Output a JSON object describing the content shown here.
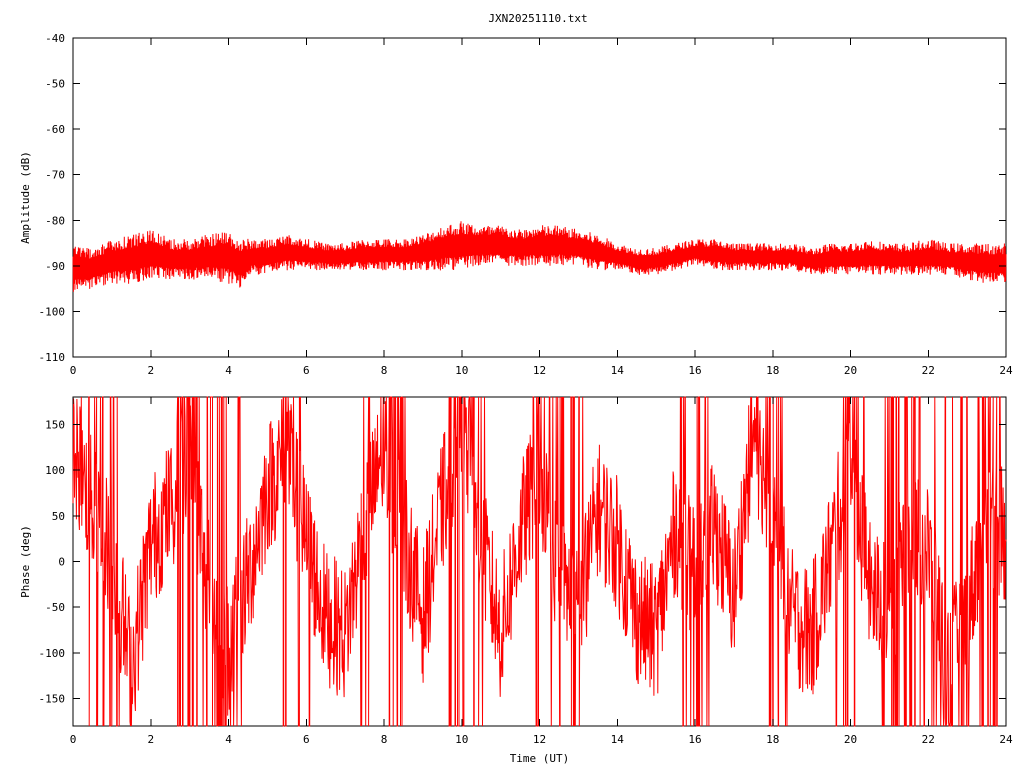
{
  "figure": {
    "title": "JXN20251110.txt"
  },
  "chart_data": [
    {
      "type": "line",
      "title": "JXN20251110.txt",
      "xlabel": "",
      "ylabel": "Amplitude (dB)",
      "xlim": [
        0,
        24
      ],
      "ylim": [
        -110,
        -40
      ],
      "xticks": [
        "0",
        "2",
        "4",
        "6",
        "8",
        "10",
        "12",
        "14",
        "16",
        "18",
        "20",
        "22",
        "24"
      ],
      "yticks": [
        "-40",
        "-50",
        "-60",
        "-70",
        "-80",
        "-90",
        "-100",
        "-110"
      ],
      "grid": false,
      "color": "#ff0000",
      "envelope": {
        "x": [
          0,
          0.5,
          1,
          1.5,
          2,
          2.5,
          3,
          3.5,
          4,
          4.3,
          4.6,
          5,
          5.5,
          6,
          6.5,
          7,
          7.5,
          8,
          8.5,
          9,
          9.5,
          10,
          10.5,
          11,
          11.5,
          12,
          12.5,
          13,
          13.5,
          14,
          14.5,
          15,
          15.5,
          16,
          16.5,
          17,
          17.5,
          18,
          18.5,
          19,
          19.5,
          20,
          20.5,
          21,
          21.5,
          22,
          22.5,
          23,
          23.5,
          24
        ],
        "high": [
          -85,
          -86,
          -84,
          -83,
          -82,
          -84,
          -84,
          -83,
          -82,
          -84,
          -84,
          -84,
          -83,
          -84,
          -85,
          -85,
          -84,
          -84,
          -84,
          -83,
          -81,
          -80,
          -81,
          -81,
          -82,
          -81,
          -81,
          -82,
          -83,
          -85,
          -86,
          -86,
          -85,
          -84,
          -84,
          -85,
          -85,
          -85,
          -85,
          -86,
          -85,
          -85,
          -84,
          -85,
          -85,
          -84,
          -85,
          -85,
          -85,
          -85
        ],
        "low": [
          -96,
          -95,
          -94,
          -94,
          -93,
          -93,
          -93,
          -93,
          -94,
          -95,
          -92,
          -92,
          -91,
          -91,
          -91,
          -91,
          -91,
          -91,
          -91,
          -91,
          -91,
          -91,
          -90,
          -90,
          -90,
          -90,
          -90,
          -90,
          -91,
          -91,
          -92,
          -92,
          -91,
          -90,
          -91,
          -91,
          -91,
          -91,
          -91,
          -92,
          -92,
          -92,
          -92,
          -92,
          -92,
          -92,
          -92,
          -93,
          -94,
          -94
        ]
      }
    },
    {
      "type": "line",
      "title": "",
      "xlabel": "Time (UT)",
      "ylabel": "Phase (deg)",
      "xlim": [
        0,
        24
      ],
      "ylim": [
        -180,
        180
      ],
      "xticks": [
        "0",
        "2",
        "4",
        "6",
        "8",
        "10",
        "12",
        "14",
        "16",
        "18",
        "20",
        "22",
        "24"
      ],
      "yticks": [
        "150",
        "100",
        "50",
        "0",
        "-50",
        "-100",
        "-150"
      ],
      "grid": false,
      "color": "#ff0000",
      "trend": {
        "x": [
          0,
          0.5,
          1,
          1.5,
          2,
          2.5,
          3,
          3.5,
          4,
          4.5,
          5,
          5.5,
          6,
          6.5,
          7,
          7.5,
          8,
          8.5,
          9,
          9.5,
          10,
          10.5,
          11,
          11.5,
          12,
          12.5,
          13,
          13.5,
          14,
          14.5,
          15,
          15.5,
          16,
          16.5,
          17,
          17.5,
          18,
          18.5,
          19,
          19.5,
          20,
          20.5,
          21,
          21.5,
          22,
          22.5,
          23,
          23.5,
          24
        ],
        "y": [
          120,
          60,
          10,
          -120,
          20,
          60,
          120,
          -30,
          -100,
          -20,
          80,
          120,
          20,
          -60,
          -80,
          40,
          120,
          30,
          -60,
          60,
          150,
          20,
          -80,
          30,
          100,
          -20,
          -60,
          60,
          20,
          -60,
          -80,
          40,
          -20,
          40,
          -40,
          140,
          60,
          -60,
          -80,
          10,
          110,
          -30,
          -60,
          40,
          10,
          -120,
          -60,
          60,
          20
        ]
      },
      "wrap_segments": [
        [
          0.2,
          1.2
        ],
        [
          2.6,
          4.4
        ],
        [
          5.4,
          6.2
        ],
        [
          7.4,
          8.6
        ],
        [
          9.6,
          10.6
        ],
        [
          11.8,
          13.2
        ],
        [
          15.6,
          16.4
        ],
        [
          17.6,
          18.4
        ],
        [
          19.6,
          20.4
        ],
        [
          20.8,
          23.9
        ]
      ]
    }
  ]
}
